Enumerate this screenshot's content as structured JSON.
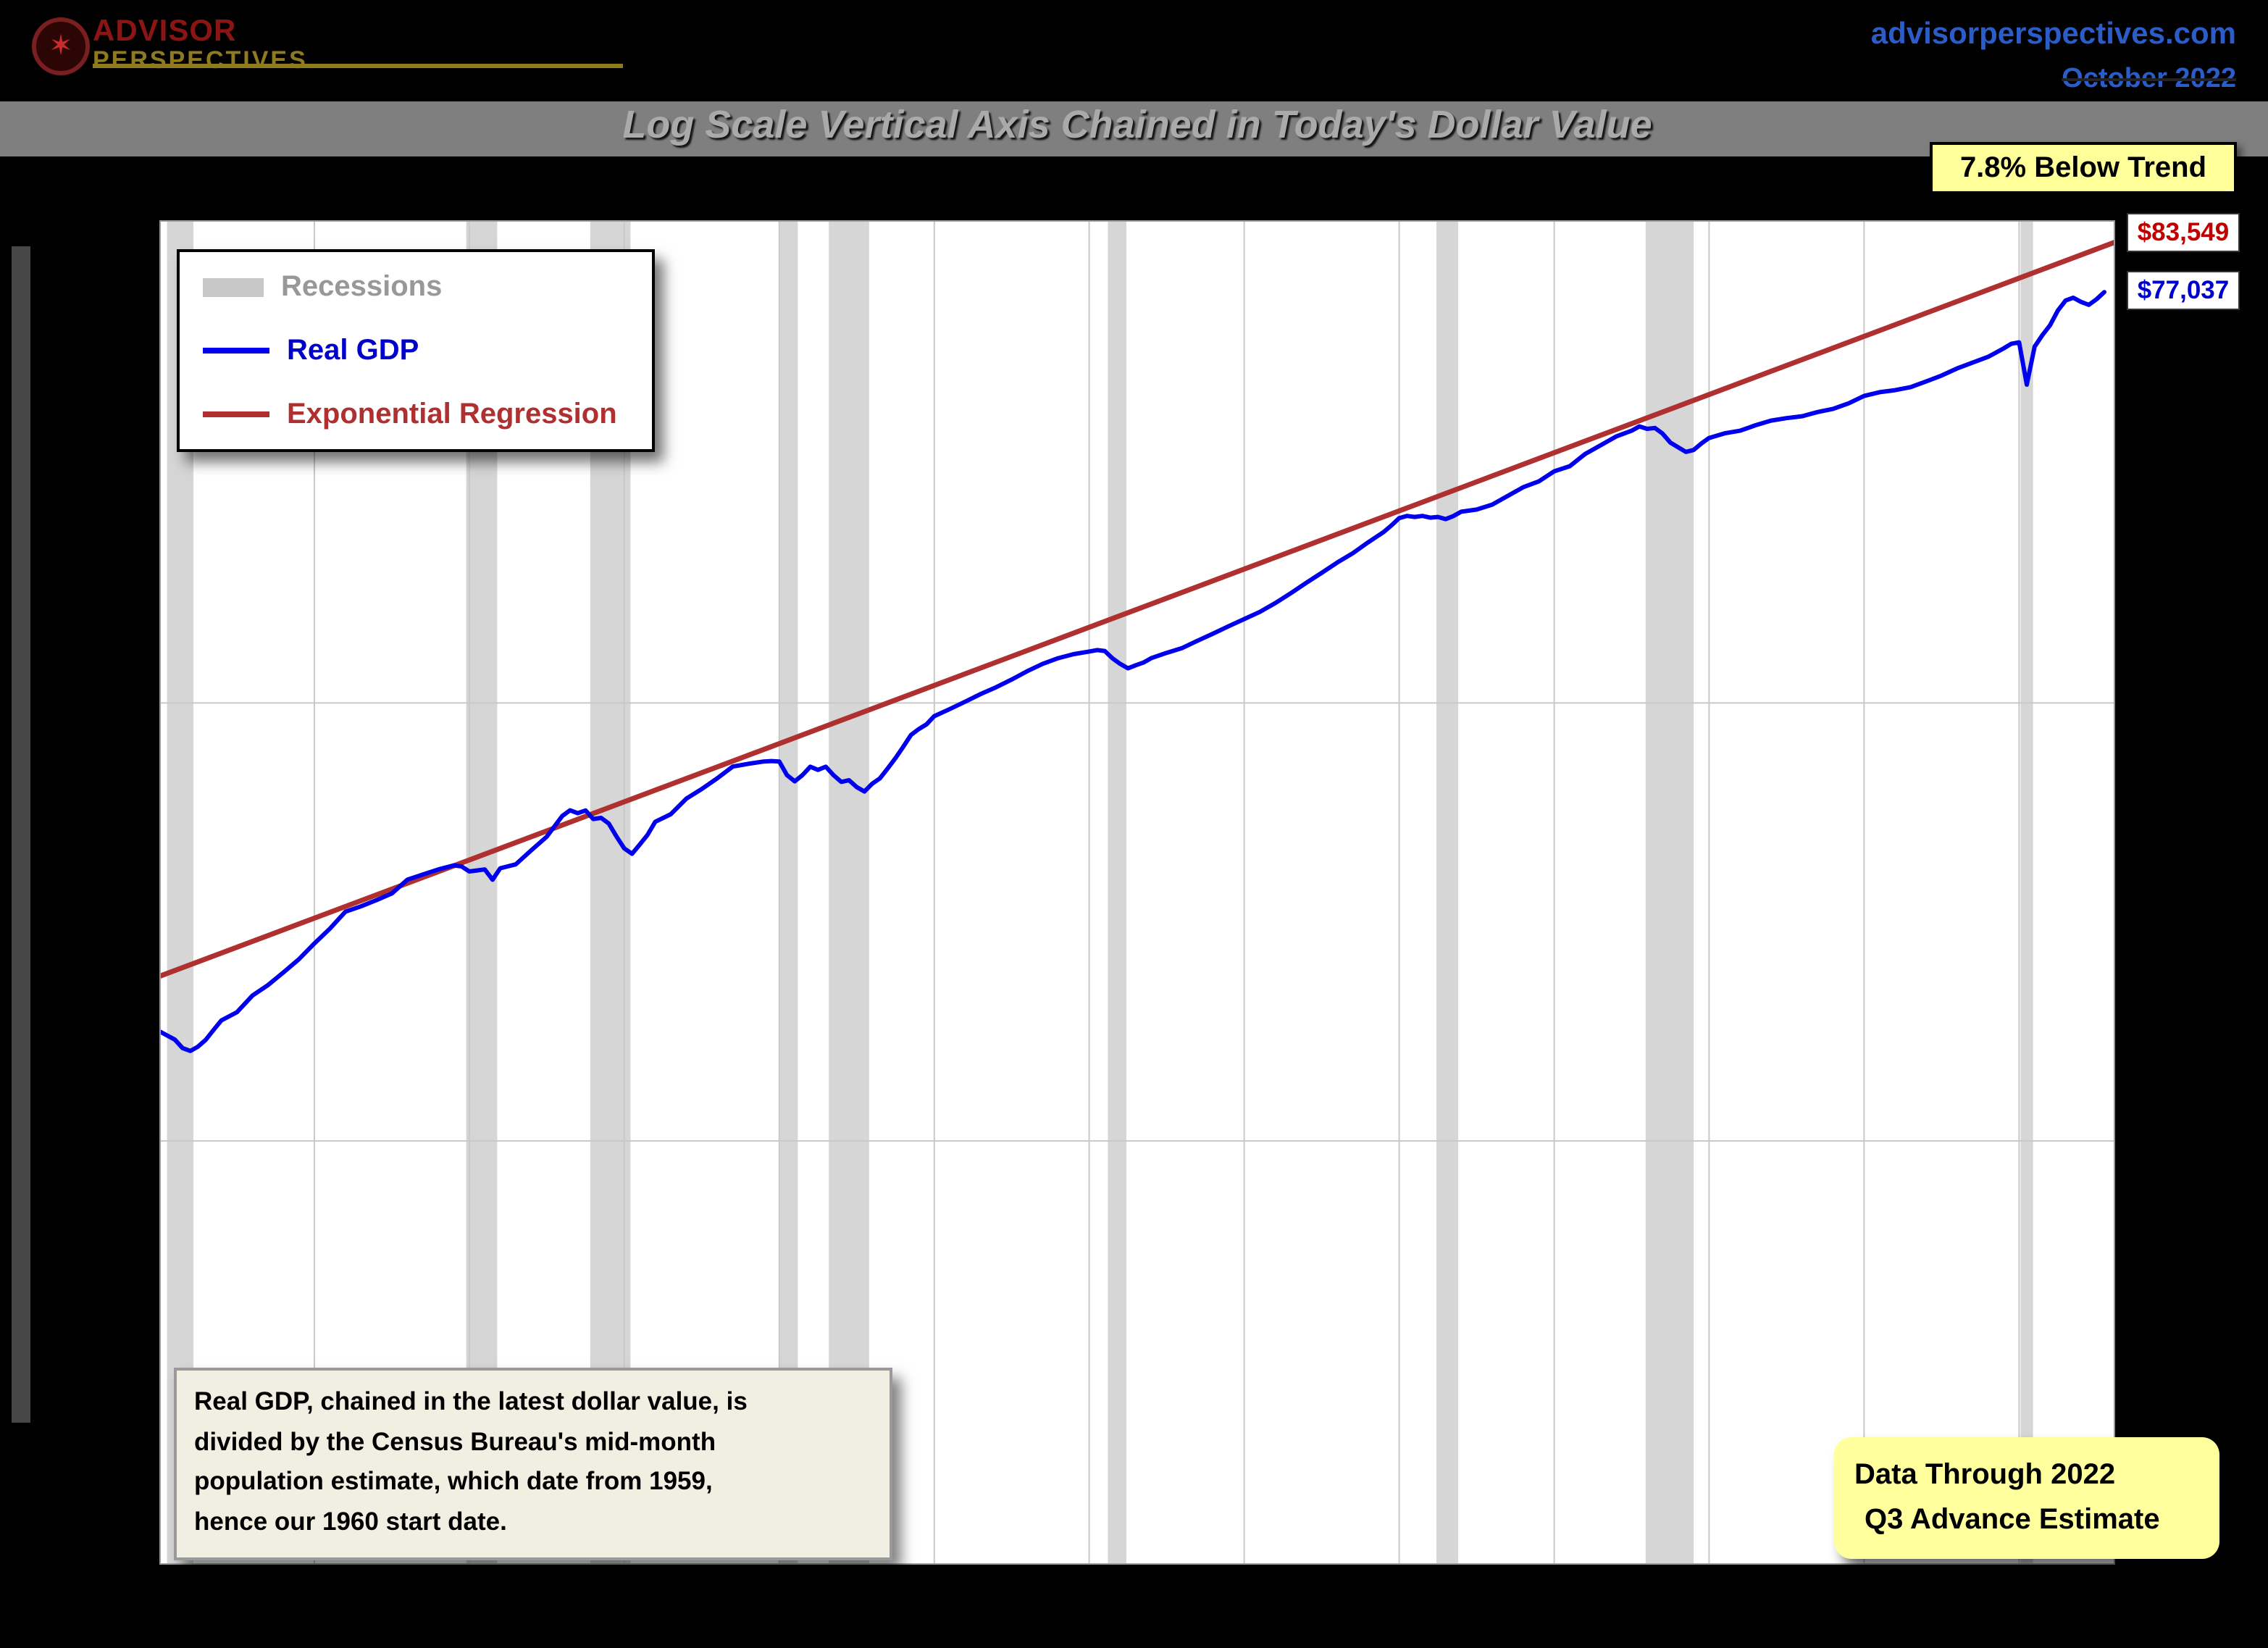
{
  "header": {
    "logo": {
      "line1": "ADVISOR",
      "line2": "PERSPECTIVES",
      "icon": "maple-leaf-icon"
    },
    "site": "advisorperspectives.com",
    "date": "October 2022",
    "subtitle": "Log Scale Vertical Axis Chained in Today's Dollar Value"
  },
  "legend": {
    "items": [
      {
        "label": "Recessions",
        "swatch": "band",
        "color": "#c8c8c8",
        "text_color": "#989898"
      },
      {
        "label": "Real GDP",
        "swatch": "line",
        "color": "#0000ee",
        "text_color": "#0000cc"
      },
      {
        "label": "Exponential Regression",
        "swatch": "line",
        "color": "#b03030",
        "text_color": "#b03030"
      }
    ]
  },
  "note": {
    "lines": [
      "Real GDP, chained in the latest dollar value, is",
      "divided by the Census Bureau's mid-month",
      "population estimate, which date from 1959,",
      "hence our 1960 start date."
    ]
  },
  "databox": {
    "line1": "Data Through 2022",
    "line2": "Q3 Advance Estimate"
  },
  "chart_data": {
    "type": "line",
    "title": "Log Scale Vertical Axis Chained in Today's Dollar Value",
    "y_scale": "log",
    "x_range": [
      1960,
      2023.1
    ],
    "y_range": [
      7300,
      88000
    ],
    "x_gridlines": [
      1965,
      1970,
      1975,
      1980,
      1985,
      1990,
      1995,
      2000,
      2005,
      2010,
      2015,
      2020
    ],
    "y_gridlines": [
      16000,
      36000
    ],
    "grid_color": "#c9c9c9",
    "frame_color": "#999999",
    "recession_color": "#d6d6d6",
    "recessions": [
      [
        1960.25,
        1961.1
      ],
      [
        1969.9,
        1970.9
      ],
      [
        1973.9,
        1975.2
      ],
      [
        1980.0,
        1980.6
      ],
      [
        1981.6,
        1982.9
      ],
      [
        1990.6,
        1991.2
      ],
      [
        2001.2,
        2001.9
      ],
      [
        2007.95,
        2009.5
      ],
      [
        2020.05,
        2020.45
      ]
    ],
    "annotations": {
      "below_trend": "7.8% Below Trend",
      "regression_end": "$83,549",
      "gdp_end": "$77,037"
    },
    "series": [
      {
        "name": "Exponential Regression",
        "color": "#b03030",
        "width": 3.5,
        "points": [
          [
            1960,
            21700
          ],
          [
            2023.1,
            84500
          ]
        ]
      },
      {
        "name": "Real GDP",
        "color": "#0000ee",
        "width": 3,
        "points": [
          [
            1960,
            19600
          ],
          [
            1960.25,
            19450
          ],
          [
            1960.5,
            19300
          ],
          [
            1960.75,
            19000
          ],
          [
            1961,
            18900
          ],
          [
            1961.25,
            19050
          ],
          [
            1961.5,
            19300
          ],
          [
            1961.75,
            19650
          ],
          [
            1962,
            20000
          ],
          [
            1962.5,
            20300
          ],
          [
            1963,
            20940
          ],
          [
            1963.5,
            21350
          ],
          [
            1964,
            21860
          ],
          [
            1964.5,
            22400
          ],
          [
            1965,
            23060
          ],
          [
            1965.5,
            23700
          ],
          [
            1966,
            24460
          ],
          [
            1966.5,
            24700
          ],
          [
            1967,
            24990
          ],
          [
            1967.5,
            25300
          ],
          [
            1968,
            25950
          ],
          [
            1968.5,
            26200
          ],
          [
            1969,
            26450
          ],
          [
            1969.5,
            26650
          ],
          [
            1969.75,
            26600
          ],
          [
            1970,
            26350
          ],
          [
            1970.25,
            26400
          ],
          [
            1970.5,
            26450
          ],
          [
            1970.75,
            25950
          ],
          [
            1971,
            26510
          ],
          [
            1971.5,
            26700
          ],
          [
            1972,
            27400
          ],
          [
            1972.5,
            28100
          ],
          [
            1973,
            29200
          ],
          [
            1973.25,
            29510
          ],
          [
            1973.5,
            29350
          ],
          [
            1973.75,
            29500
          ],
          [
            1974,
            29040
          ],
          [
            1974.25,
            29100
          ],
          [
            1974.5,
            28800
          ],
          [
            1974.75,
            28100
          ],
          [
            1975,
            27500
          ],
          [
            1975.25,
            27230
          ],
          [
            1975.5,
            27700
          ],
          [
            1975.75,
            28200
          ],
          [
            1976,
            28890
          ],
          [
            1976.5,
            29300
          ],
          [
            1977,
            30150
          ],
          [
            1977.5,
            30700
          ],
          [
            1978,
            31310
          ],
          [
            1978.5,
            32000
          ],
          [
            1979,
            32160
          ],
          [
            1979.5,
            32300
          ],
          [
            1979.75,
            32330
          ],
          [
            1980,
            32300
          ],
          [
            1980.25,
            31500
          ],
          [
            1980.5,
            31140
          ],
          [
            1980.75,
            31500
          ],
          [
            1981,
            31990
          ],
          [
            1981.25,
            31800
          ],
          [
            1981.5,
            31990
          ],
          [
            1981.75,
            31500
          ],
          [
            1982,
            31100
          ],
          [
            1982.25,
            31200
          ],
          [
            1982.5,
            30800
          ],
          [
            1982.75,
            30560
          ],
          [
            1983,
            31000
          ],
          [
            1983.25,
            31310
          ],
          [
            1983.5,
            31900
          ],
          [
            1983.75,
            32500
          ],
          [
            1984,
            33200
          ],
          [
            1984.25,
            33930
          ],
          [
            1984.5,
            34300
          ],
          [
            1984.75,
            34600
          ],
          [
            1985,
            35130
          ],
          [
            1985.5,
            35600
          ],
          [
            1986,
            36090
          ],
          [
            1986.5,
            36600
          ],
          [
            1987,
            37070
          ],
          [
            1987.5,
            37600
          ],
          [
            1988,
            38180
          ],
          [
            1988.5,
            38700
          ],
          [
            1989,
            39110
          ],
          [
            1989.5,
            39400
          ],
          [
            1990,
            39600
          ],
          [
            1990.25,
            39700
          ],
          [
            1990.5,
            39640
          ],
          [
            1990.75,
            39100
          ],
          [
            1991,
            38700
          ],
          [
            1991.25,
            38380
          ],
          [
            1991.5,
            38600
          ],
          [
            1991.75,
            38800
          ],
          [
            1992,
            39110
          ],
          [
            1992.5,
            39500
          ],
          [
            1993,
            39850
          ],
          [
            1993.5,
            40400
          ],
          [
            1994,
            40940
          ],
          [
            1994.5,
            41500
          ],
          [
            1995,
            42050
          ],
          [
            1995.5,
            42600
          ],
          [
            1996,
            43310
          ],
          [
            1996.5,
            44100
          ],
          [
            1997,
            44970
          ],
          [
            1997.5,
            45800
          ],
          [
            1998,
            46690
          ],
          [
            1998.5,
            47500
          ],
          [
            1999,
            48470
          ],
          [
            1999.5,
            49400
          ],
          [
            1999.75,
            50000
          ],
          [
            2000,
            50700
          ],
          [
            2000.25,
            50900
          ],
          [
            2000.5,
            50800
          ],
          [
            2000.75,
            50900
          ],
          [
            2001,
            50740
          ],
          [
            2001.25,
            50800
          ],
          [
            2001.5,
            50600
          ],
          [
            2001.75,
            50880
          ],
          [
            2002,
            51290
          ],
          [
            2002.5,
            51500
          ],
          [
            2003,
            51980
          ],
          [
            2003.5,
            52820
          ],
          [
            2004,
            53680
          ],
          [
            2004.5,
            54260
          ],
          [
            2005,
            55280
          ],
          [
            2005.5,
            55800
          ],
          [
            2006,
            57090
          ],
          [
            2006.5,
            58000
          ],
          [
            2007,
            58960
          ],
          [
            2007.5,
            59600
          ],
          [
            2007.75,
            60080
          ],
          [
            2008,
            59800
          ],
          [
            2008.25,
            59900
          ],
          [
            2008.5,
            59280
          ],
          [
            2008.75,
            58300
          ],
          [
            2009,
            57800
          ],
          [
            2009.25,
            57300
          ],
          [
            2009.5,
            57500
          ],
          [
            2009.75,
            58200
          ],
          [
            2010,
            58800
          ],
          [
            2010.5,
            59300
          ],
          [
            2011,
            59600
          ],
          [
            2011.5,
            60200
          ],
          [
            2012,
            60730
          ],
          [
            2012.5,
            61000
          ],
          [
            2013,
            61220
          ],
          [
            2013.5,
            61700
          ],
          [
            2014,
            62050
          ],
          [
            2014.5,
            62700
          ],
          [
            2015,
            63560
          ],
          [
            2015.5,
            64000
          ],
          [
            2016,
            64240
          ],
          [
            2016.5,
            64600
          ],
          [
            2017,
            65280
          ],
          [
            2017.5,
            66000
          ],
          [
            2018,
            66880
          ],
          [
            2018.5,
            67600
          ],
          [
            2019,
            68330
          ],
          [
            2019.5,
            69400
          ],
          [
            2019.75,
            70000
          ],
          [
            2020,
            70180
          ],
          [
            2020.25,
            64900
          ],
          [
            2020.5,
            69620
          ],
          [
            2020.75,
            71120
          ],
          [
            2021,
            72470
          ],
          [
            2021.25,
            74430
          ],
          [
            2021.5,
            75840
          ],
          [
            2021.75,
            76240
          ],
          [
            2022,
            75640
          ],
          [
            2022.25,
            75240
          ],
          [
            2022.5,
            76040
          ],
          [
            2022.75,
            77037
          ]
        ]
      }
    ]
  }
}
